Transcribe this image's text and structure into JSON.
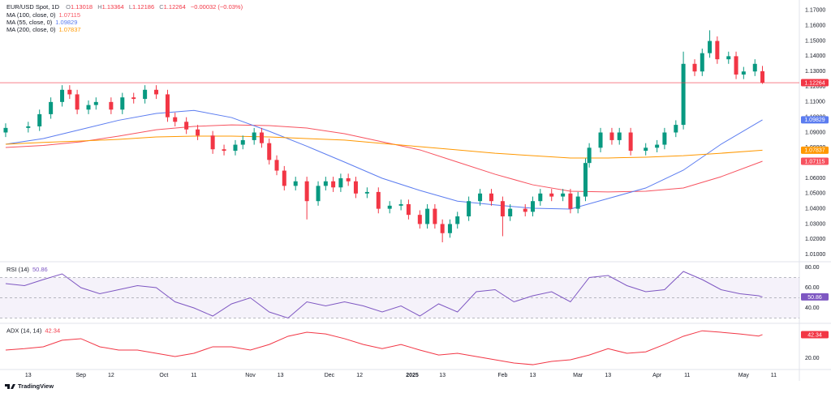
{
  "header": {
    "symbol": "EUR/USD Spot, 1D",
    "open_label": "O",
    "high_label": "H",
    "low_label": "L",
    "close_label": "C",
    "change": "−0.00032 (−0.03%)"
  },
  "footer": {
    "brand": "TradingView"
  },
  "chart_data": [
    {
      "type": "candlestick",
      "up_color": "#089981",
      "down_color": "#f23645",
      "xlim": [
        -1.5,
        210.8
      ],
      "ylim": [
        1.0058,
        1.1742
      ],
      "yticks": [
        {
          "value": 1.01,
          "label": "1.01000"
        },
        {
          "value": 1.02,
          "label": "1.02000"
        },
        {
          "value": 1.03,
          "label": "1.03000"
        },
        {
          "value": 1.04,
          "label": "1.04000"
        },
        {
          "value": 1.05,
          "label": "1.05000"
        },
        {
          "value": 1.06,
          "label": "1.06000"
        },
        {
          "value": 1.07,
          "label": "1.07000"
        },
        {
          "value": 1.08,
          "label": "1.08000"
        },
        {
          "value": 1.09,
          "label": "1.09000"
        },
        {
          "value": 1.1,
          "label": "1.10000"
        },
        {
          "value": 1.11,
          "label": "1.11000"
        },
        {
          "value": 1.12,
          "label": "1.12000"
        },
        {
          "value": 1.13,
          "label": "1.13000"
        },
        {
          "value": 1.14,
          "label": "1.14000"
        },
        {
          "value": 1.15,
          "label": "1.15000"
        },
        {
          "value": 1.16,
          "label": "1.16000"
        },
        {
          "value": 1.17,
          "label": "1.17000"
        }
      ],
      "grid": false,
      "x": [
        0,
        6,
        9,
        12,
        15,
        17,
        19,
        22,
        24,
        28,
        31,
        34,
        37,
        40,
        43,
        45,
        48,
        51,
        55,
        58,
        61,
        63,
        66,
        68,
        70,
        72,
        74,
        77,
        80,
        83,
        85,
        87,
        89,
        91,
        93,
        96,
        99,
        102,
        105,
        107,
        110,
        112,
        114,
        116,
        118,
        120,
        123,
        126,
        129,
        132,
        134,
        138,
        140,
        142,
        145,
        148,
        150,
        152,
        154,
        155,
        158,
        161,
        163,
        166,
        170,
        173,
        175,
        178,
        180,
        183,
        185,
        187,
        189,
        192,
        194,
        196,
        199,
        201
      ],
      "open": [
        1.09,
        1.093,
        1.094,
        1.102,
        1.11,
        1.118,
        1.115,
        1.105,
        1.108,
        1.11,
        1.105,
        1.113,
        1.112,
        1.118,
        1.115,
        1.1,
        1.097,
        1.092,
        1.088,
        1.079,
        1.078,
        1.082,
        1.085,
        1.09,
        1.083,
        1.072,
        1.065,
        1.055,
        1.058,
        1.045,
        1.055,
        1.058,
        1.054,
        1.06,
        1.058,
        1.05,
        1.051,
        1.04,
        1.042,
        1.043,
        1.036,
        1.03,
        1.04,
        1.03,
        1.024,
        1.03,
        1.035,
        1.045,
        1.05,
        1.045,
        1.035,
        1.04,
        1.038,
        1.045,
        1.05,
        1.048,
        1.05,
        1.04,
        1.048,
        1.07,
        1.08,
        1.09,
        1.085,
        1.09,
        1.078,
        1.08,
        1.082,
        1.09,
        1.095,
        1.135,
        1.13,
        1.142,
        1.15,
        1.138,
        1.14,
        1.128,
        1.13,
        1.13018
      ],
      "high": [
        1.096,
        1.097,
        1.105,
        1.113,
        1.121,
        1.121,
        1.118,
        1.111,
        1.113,
        1.113,
        1.116,
        1.116,
        1.121,
        1.121,
        1.118,
        1.103,
        1.1,
        1.095,
        1.091,
        1.082,
        1.085,
        1.088,
        1.093,
        1.093,
        1.086,
        1.075,
        1.068,
        1.061,
        1.061,
        1.058,
        1.061,
        1.061,
        1.063,
        1.063,
        1.061,
        1.054,
        1.054,
        1.045,
        1.046,
        1.046,
        1.039,
        1.043,
        1.043,
        1.033,
        1.033,
        1.038,
        1.048,
        1.053,
        1.053,
        1.048,
        1.043,
        1.043,
        1.048,
        1.053,
        1.053,
        1.053,
        1.053,
        1.051,
        1.073,
        1.083,
        1.093,
        1.093,
        1.093,
        1.093,
        1.083,
        1.085,
        1.093,
        1.098,
        1.143,
        1.138,
        1.145,
        1.157,
        1.153,
        1.143,
        1.143,
        1.133,
        1.138,
        1.13364
      ],
      "low": [
        1.087,
        1.09,
        1.091,
        1.099,
        1.107,
        1.112,
        1.102,
        1.102,
        1.105,
        1.102,
        1.102,
        1.109,
        1.109,
        1.112,
        1.097,
        1.094,
        1.089,
        1.085,
        1.076,
        1.075,
        1.075,
        1.079,
        1.082,
        1.08,
        1.069,
        1.062,
        1.052,
        1.052,
        1.033,
        1.042,
        1.052,
        1.051,
        1.051,
        1.055,
        1.047,
        1.047,
        1.037,
        1.037,
        1.039,
        1.033,
        1.027,
        1.027,
        1.027,
        1.018,
        1.021,
        1.027,
        1.032,
        1.042,
        1.042,
        1.022,
        1.032,
        1.035,
        1.035,
        1.042,
        1.045,
        1.045,
        1.037,
        1.037,
        1.045,
        1.067,
        1.077,
        1.082,
        1.082,
        1.075,
        1.075,
        1.077,
        1.079,
        1.087,
        1.092,
        1.127,
        1.127,
        1.139,
        1.135,
        1.135,
        1.125,
        1.125,
        1.127,
        1.12186
      ],
      "close": [
        1.093,
        1.094,
        1.102,
        1.11,
        1.118,
        1.115,
        1.105,
        1.108,
        1.11,
        1.105,
        1.113,
        1.112,
        1.118,
        1.115,
        1.1,
        1.097,
        1.092,
        1.088,
        1.079,
        1.078,
        1.082,
        1.085,
        1.09,
        1.083,
        1.072,
        1.065,
        1.055,
        1.058,
        1.045,
        1.055,
        1.058,
        1.054,
        1.06,
        1.058,
        1.05,
        1.051,
        1.04,
        1.042,
        1.043,
        1.036,
        1.03,
        1.04,
        1.03,
        1.024,
        1.03,
        1.035,
        1.045,
        1.05,
        1.045,
        1.035,
        1.04,
        1.038,
        1.045,
        1.05,
        1.048,
        1.05,
        1.04,
        1.048,
        1.07,
        1.08,
        1.09,
        1.085,
        1.09,
        1.078,
        1.08,
        1.082,
        1.09,
        1.095,
        1.135,
        1.13,
        1.142,
        1.15,
        1.138,
        1.14,
        1.128,
        1.13,
        1.135,
        1.12264
      ],
      "series": [
        {
          "name": "MA (100, close, 0)",
          "color": "#f7525f",
          "x": [
            0,
            10,
            20,
            30,
            40,
            50,
            60,
            70,
            80,
            90,
            100,
            110,
            120,
            130,
            140,
            150,
            160,
            170,
            180,
            190,
            201
          ],
          "values": [
            1.0802,
            1.0815,
            1.0839,
            1.0876,
            1.0918,
            1.094,
            1.095,
            1.0945,
            1.0929,
            1.0892,
            1.0839,
            1.0786,
            1.0706,
            1.0626,
            1.0557,
            1.0515,
            1.051,
            1.0515,
            1.0536,
            1.061,
            1.07115
          ]
        },
        {
          "name": "MA (55, close, 0)",
          "color": "#5b7cf0",
          "x": [
            0,
            10,
            20,
            30,
            40,
            50,
            60,
            70,
            80,
            90,
            100,
            110,
            120,
            130,
            140,
            150,
            160,
            170,
            180,
            190,
            201
          ],
          "values": [
            1.0823,
            1.086,
            1.092,
            1.098,
            1.1025,
            1.1045,
            1.0998,
            1.0908,
            1.081,
            1.0706,
            1.06,
            1.052,
            1.045,
            1.0425,
            1.0403,
            1.0398,
            1.0467,
            1.0536,
            1.0653,
            1.0823,
            1.09829
          ]
        },
        {
          "name": "MA (200, close, 0)",
          "color": "#ff9800",
          "x": [
            0,
            10,
            20,
            30,
            40,
            50,
            60,
            70,
            80,
            90,
            100,
            110,
            120,
            130,
            140,
            150,
            160,
            170,
            180,
            190,
            201
          ],
          "values": [
            1.0823,
            1.0835,
            1.0844,
            1.0855,
            1.0871,
            1.0876,
            1.0876,
            1.0871,
            1.086,
            1.085,
            1.0828,
            1.0807,
            1.0786,
            1.0764,
            1.0748,
            1.0733,
            1.0733,
            1.0738,
            1.0748,
            1.0764,
            1.07837
          ]
        }
      ]
    },
    {
      "type": "line",
      "title": "RSI (14)",
      "color": "#7e57c2",
      "xlim": [
        -1.5,
        210.8
      ],
      "ylim": [
        24,
        84
      ],
      "yticks": [
        {
          "value": 40,
          "label": "40.00"
        },
        {
          "value": 60,
          "label": "60.00"
        },
        {
          "value": 80,
          "label": "80.00"
        }
      ],
      "levels": [
        70,
        50,
        30
      ],
      "x": [
        0,
        5,
        10,
        15,
        20,
        25,
        30,
        35,
        40,
        45,
        50,
        55,
        60,
        65,
        70,
        75,
        80,
        85,
        90,
        95,
        100,
        105,
        110,
        115,
        120,
        125,
        130,
        135,
        140,
        145,
        150,
        155,
        160,
        165,
        170,
        175,
        180,
        185,
        190,
        195,
        200,
        201
      ],
      "values": [
        64,
        62,
        68,
        73.6,
        60,
        54,
        58,
        62,
        60,
        46,
        40,
        32,
        44,
        50,
        36,
        30,
        46,
        42,
        46,
        42,
        36,
        42,
        32,
        44,
        36,
        56,
        58,
        46,
        52,
        56,
        46,
        70,
        72,
        62,
        56,
        58,
        76,
        68,
        58,
        54,
        52,
        50.86
      ]
    },
    {
      "type": "line",
      "title": "ADX (14, 14)",
      "color": "#f23645",
      "xlim": [
        -1.5,
        210.8
      ],
      "ylim": [
        8,
        52
      ],
      "yticks": [
        {
          "value": 20,
          "label": "20.00"
        }
      ],
      "xticks": [
        {
          "value": 6,
          "label": "13"
        },
        {
          "value": 20,
          "label": "Sep"
        },
        {
          "value": 28,
          "label": "12"
        },
        {
          "value": 42,
          "label": "Oct"
        },
        {
          "value": 50,
          "label": "11"
        },
        {
          "value": 65,
          "label": "Nov"
        },
        {
          "value": 73,
          "label": "13"
        },
        {
          "value": 86,
          "label": "Dec"
        },
        {
          "value": 94,
          "label": "12"
        },
        {
          "value": 108,
          "label": "2025"
        },
        {
          "value": 116,
          "label": "13"
        },
        {
          "value": 132,
          "label": "Feb"
        },
        {
          "value": 140,
          "label": "13"
        },
        {
          "value": 152,
          "label": "Mar"
        },
        {
          "value": 160,
          "label": "13"
        },
        {
          "value": 173,
          "label": "Apr"
        },
        {
          "value": 181,
          "label": "11"
        },
        {
          "value": 196,
          "label": "May"
        },
        {
          "value": 204,
          "label": "11"
        }
      ],
      "x": [
        0,
        5,
        10,
        15,
        20,
        25,
        30,
        35,
        40,
        45,
        50,
        55,
        60,
        65,
        70,
        75,
        80,
        85,
        90,
        95,
        100,
        105,
        110,
        115,
        120,
        125,
        130,
        135,
        140,
        145,
        150,
        155,
        160,
        165,
        170,
        175,
        180,
        185,
        190,
        195,
        200,
        201
      ],
      "values": [
        27.7,
        29,
        30.8,
        37,
        38.5,
        30.8,
        27.7,
        27.7,
        24.6,
        21.5,
        24.6,
        30.8,
        30.8,
        27.7,
        33,
        40.8,
        44.6,
        43,
        38.5,
        33,
        29,
        33,
        27.7,
        23,
        24.6,
        21.5,
        18.5,
        15.4,
        13.8,
        16.9,
        18.5,
        23,
        29,
        24.6,
        26,
        33,
        40.8,
        46,
        44.6,
        43,
        41,
        42.34
      ]
    }
  ]
}
